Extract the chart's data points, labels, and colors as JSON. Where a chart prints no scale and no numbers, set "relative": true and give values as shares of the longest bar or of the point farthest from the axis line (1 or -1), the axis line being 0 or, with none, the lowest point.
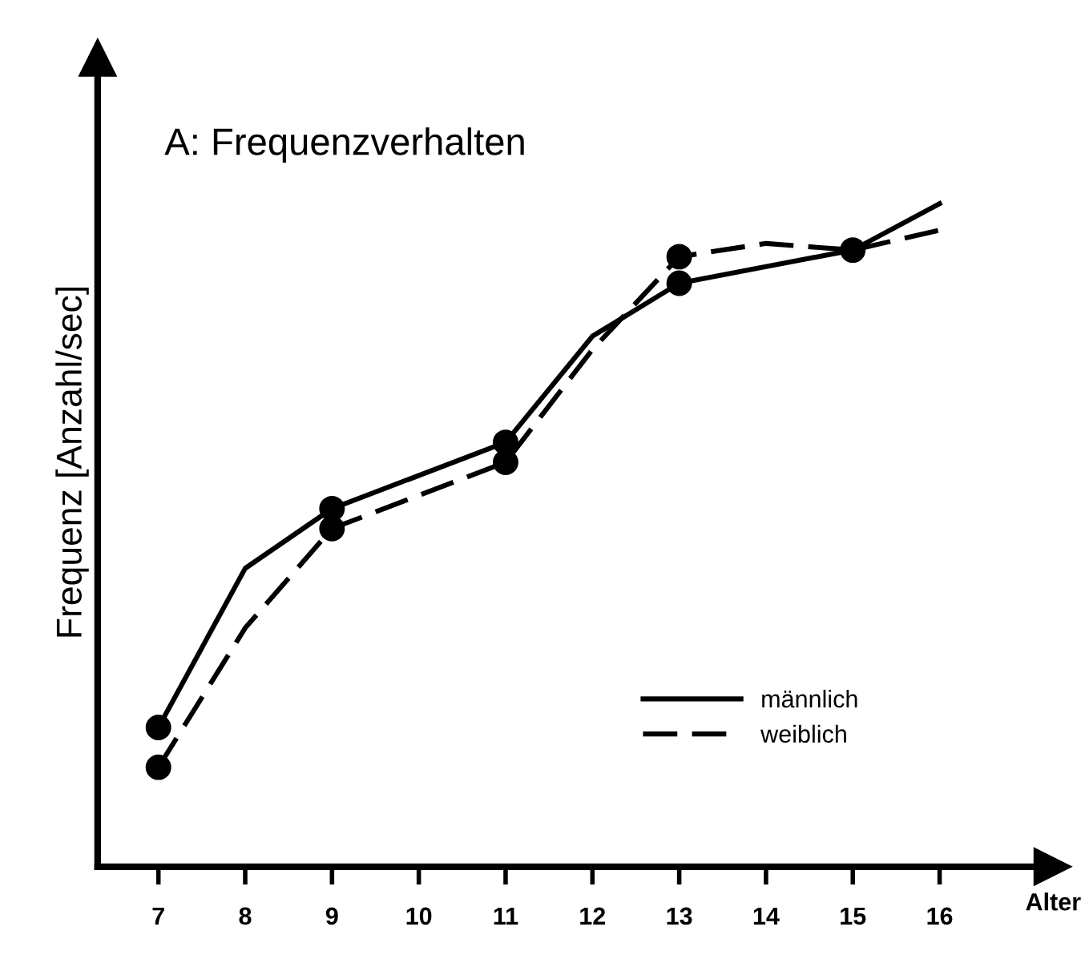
{
  "chart_data": {
    "type": "line",
    "title": "A: Frequenzverhalten",
    "xlabel": "Alter",
    "ylabel": "Frequenz [Anzahl/sec]",
    "relative": true,
    "xlim": [
      6.3,
      17.3
    ],
    "xticks": [
      7,
      8,
      9,
      10,
      11,
      12,
      13,
      14,
      15,
      16
    ],
    "series": [
      {
        "name": "männlich",
        "color": "#000000",
        "line_style": "solid",
        "marker": "none",
        "x": [
          7,
          8,
          9,
          11,
          12,
          13,
          15,
          16
        ],
        "values": [
          0.21,
          0.45,
          0.54,
          0.64,
          0.8,
          0.88,
          0.93,
          1.0
        ]
      },
      {
        "name": "weiblich",
        "color": "#000000",
        "line_style": "dashed",
        "marker": "none",
        "x": [
          7,
          8,
          9,
          11,
          12,
          13,
          14,
          15,
          16
        ],
        "values": [
          0.15,
          0.36,
          0.51,
          0.61,
          0.78,
          0.92,
          0.94,
          0.93,
          0.96
        ]
      },
      {
        "type": "scatter",
        "color": "#000000",
        "marker": "circle",
        "x": [
          7,
          9,
          11,
          13,
          15
        ],
        "values": [
          0.21,
          0.54,
          0.64,
          0.88,
          0.93
        ]
      },
      {
        "type": "scatter",
        "color": "#000000",
        "marker": "circle",
        "x": [
          7,
          9,
          11,
          13
        ],
        "values": [
          0.15,
          0.51,
          0.61,
          0.92
        ]
      }
    ],
    "legend": "bottom right",
    "grid": false
  }
}
